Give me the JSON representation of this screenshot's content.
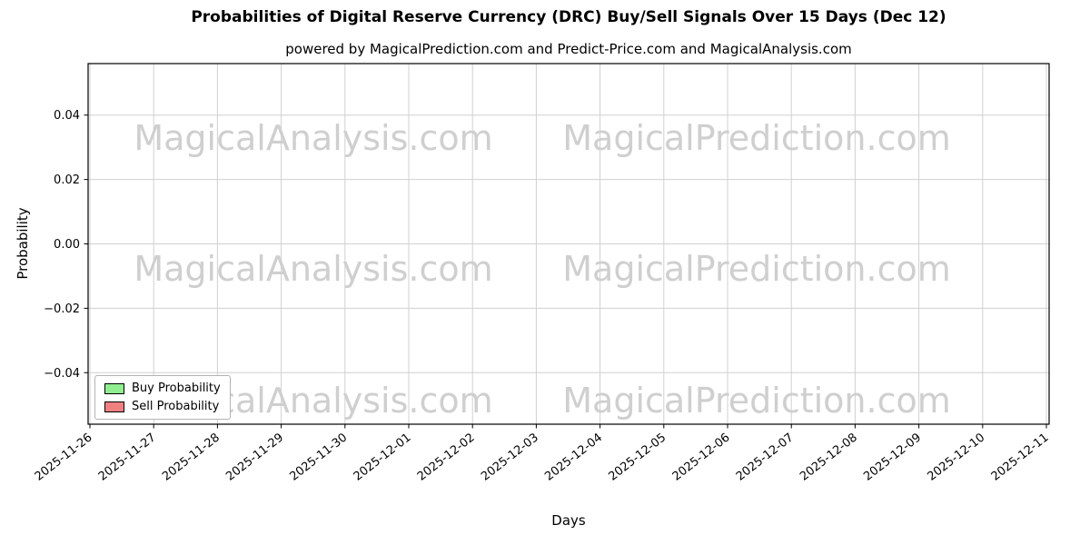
{
  "chart_data": {
    "type": "bar",
    "title": "Probabilities of Digital Reserve Currency (DRC) Buy/Sell Signals Over 15 Days (Dec 12)",
    "subtitle": "powered by MagicalPrediction.com and Predict-Price.com and MagicalAnalysis.com",
    "xlabel": "Days",
    "ylabel": "Probability",
    "ylim": [
      -0.056,
      0.056
    ],
    "yticks": {
      "values": [
        0.04,
        0.02,
        0.0,
        -0.02,
        -0.04
      ],
      "labels": [
        "0.04",
        "0.02",
        "0.00",
        "−0.02",
        "−0.04"
      ]
    },
    "categories": [
      "2025-11-26",
      "2025-11-27",
      "2025-11-28",
      "2025-11-29",
      "2025-11-30",
      "2025-12-01",
      "2025-12-02",
      "2025-12-03",
      "2025-12-04",
      "2025-12-05",
      "2025-12-06",
      "2025-12-07",
      "2025-12-08",
      "2025-12-09",
      "2025-12-10",
      "2025-12-11"
    ],
    "series": [
      {
        "name": "Buy Probability",
        "color": "#90ee90",
        "values": [
          0,
          0,
          0,
          0,
          0,
          0,
          0,
          0,
          0,
          0,
          0,
          0,
          0,
          0,
          0,
          0
        ]
      },
      {
        "name": "Sell Probability",
        "color": "#f08080",
        "values": [
          0,
          0,
          0,
          0,
          0,
          0,
          0,
          0,
          0,
          0,
          0,
          0,
          0,
          0,
          0,
          0
        ]
      }
    ],
    "legend_position": "lower left",
    "grid": true,
    "watermarks": {
      "text_left": "MagicalAnalysis.com",
      "text_right": "MagicalPrediction.com",
      "color": "#cfcfcf"
    }
  }
}
